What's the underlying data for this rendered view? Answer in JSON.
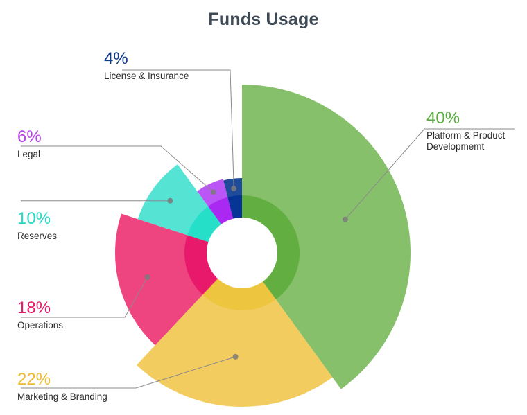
{
  "chart_data": {
    "type": "pie",
    "title": "Funds Usage",
    "categories": [
      "Platform & Product Developmemt",
      "Marketing & Branding",
      "Operations",
      "Reserves",
      "Legal",
      "License & Insurance"
    ],
    "values": [
      40,
      22,
      18,
      10,
      6,
      4
    ],
    "value_labels": [
      "40%",
      "22%",
      "18%",
      "10%",
      "6%",
      "4%"
    ],
    "label_lines": [
      [
        "Platform & Product",
        "Developmemt"
      ],
      [
        "Marketing & Branding"
      ],
      [
        "Operations"
      ],
      [
        "Reserves"
      ],
      [
        "Legal"
      ],
      [
        "License & Insurance"
      ]
    ],
    "colors": [
      "#86c06b",
      "#f2cc5f",
      "#ee4580",
      "#55e3d4",
      "#bb55f5",
      "#1f4b9a"
    ],
    "inner_colors": [
      "#62ae40",
      "#eec53e",
      "#e8196a",
      "#26dfc8",
      "#a929f2",
      "#063595"
    ],
    "label_colors": [
      "#57ad3e",
      "#eeb92e",
      "#e8196a",
      "#26d9c6",
      "#b83cf0",
      "#0e3a8c"
    ],
    "legend": "none"
  }
}
